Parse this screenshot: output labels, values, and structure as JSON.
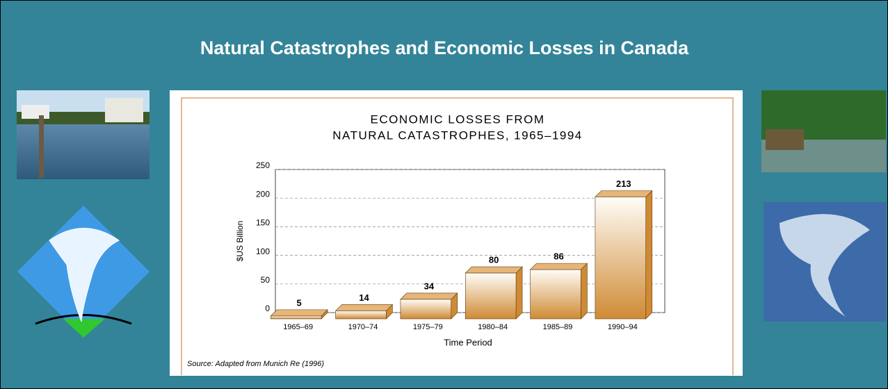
{
  "slide_title": "Natural Catastrophes and Economic Losses in Canada",
  "source": "Source: Adapted from Munich Re (1996)",
  "chart_data": {
    "type": "bar",
    "title": [
      "ECONOMIC LOSSES FROM",
      "NATURAL CATASTROPHES, 1965–1994"
    ],
    "x_label": "Time Period",
    "y_label": "$US Billion",
    "categories": [
      "1965–69",
      "1970–74",
      "1975–79",
      "1980–84",
      "1985–89",
      "1990–94"
    ],
    "values": [
      5,
      14,
      34,
      80,
      86,
      213
    ],
    "color": "#cf8a34",
    "ylim": [
      0,
      250
    ],
    "yticks": [
      0,
      50,
      100,
      150,
      200,
      250
    ],
    "grid": true
  }
}
